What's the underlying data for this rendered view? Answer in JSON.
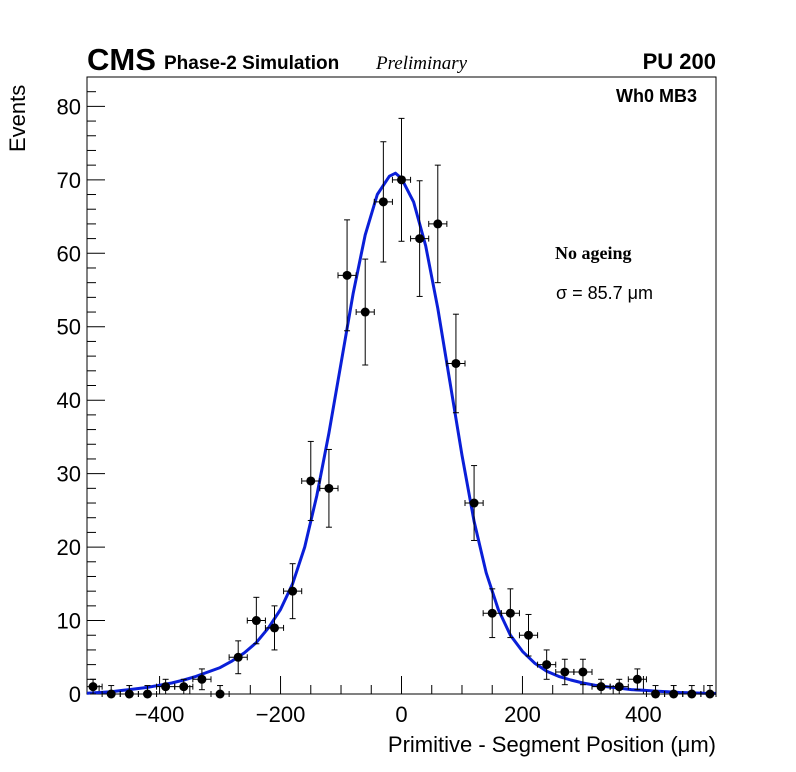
{
  "header": {
    "experiment": "CMS",
    "simulation": "Phase-2 Simulation",
    "status": "Preliminary",
    "pileup": "PU 200"
  },
  "annotations": {
    "region": "Wh0 MB3",
    "condition": "No ageing",
    "resolution": "σ = 85.7 μm"
  },
  "colors": {
    "fit": "#0a1fd8",
    "points": "#000000"
  },
  "chart_data": {
    "type": "scatter",
    "title": "",
    "xlabel": "Primitive - Segment Position (μm)",
    "ylabel": "Events",
    "xlim": [
      -520,
      520
    ],
    "ylim": [
      0,
      84
    ],
    "grid": false,
    "x_ticks": [
      -400,
      -200,
      0,
      200,
      400
    ],
    "x_tick_labels": [
      "−400",
      "−200",
      "0",
      "200",
      "400"
    ],
    "y_ticks": [
      0,
      10,
      20,
      30,
      40,
      50,
      60,
      70,
      80
    ],
    "y_tick_labels": [
      "0",
      "10",
      "20",
      "30",
      "40",
      "50",
      "60",
      "70",
      "80"
    ],
    "bin_width": 30,
    "series": [
      {
        "name": "Primitive - Segment Position",
        "kind": "histogram-points",
        "x": [
          -510,
          -480,
          -450,
          -420,
          -390,
          -360,
          -330,
          -300,
          -270,
          -240,
          -210,
          -180,
          -150,
          -120,
          -90,
          -60,
          -30,
          0,
          30,
          60,
          90,
          120,
          150,
          180,
          210,
          240,
          270,
          300,
          330,
          360,
          390,
          420,
          450,
          480,
          510
        ],
        "y": [
          1,
          0,
          0,
          0,
          1,
          1,
          2,
          0,
          5,
          10,
          9,
          14,
          29,
          28,
          57,
          52,
          67,
          70,
          62,
          64,
          45,
          26,
          11,
          11,
          8,
          4,
          3,
          3,
          1,
          1,
          2,
          0,
          0,
          0,
          0
        ]
      },
      {
        "name": "Fit",
        "kind": "fit-line",
        "x": [
          -520,
          -500,
          -480,
          -460,
          -440,
          -420,
          -400,
          -380,
          -360,
          -340,
          -320,
          -300,
          -280,
          -260,
          -240,
          -220,
          -200,
          -180,
          -160,
          -140,
          -120,
          -100,
          -80,
          -60,
          -40,
          -20,
          -10,
          0,
          20,
          40,
          60,
          80,
          100,
          120,
          140,
          160,
          180,
          200,
          220,
          240,
          260,
          280,
          300,
          320,
          340,
          360,
          380,
          400,
          420,
          440,
          460,
          480,
          500,
          520
        ],
        "y": [
          0.1,
          0.2,
          0.3,
          0.5,
          0.7,
          0.9,
          1.2,
          1.5,
          1.9,
          2.4,
          3.0,
          3.6,
          4.5,
          5.6,
          7.0,
          9.0,
          11.5,
          15.0,
          20.0,
          27.0,
          35.5,
          45.0,
          54.5,
          62.5,
          68.0,
          70.5,
          70.9,
          70.2,
          67.0,
          61.0,
          52.5,
          42.5,
          32.5,
          23.5,
          16.5,
          11.5,
          8.0,
          5.8,
          4.2,
          3.1,
          2.4,
          1.9,
          1.5,
          1.2,
          1.0,
          0.8,
          0.6,
          0.5,
          0.4,
          0.3,
          0.2,
          0.15,
          0.1,
          0.08
        ]
      }
    ]
  }
}
